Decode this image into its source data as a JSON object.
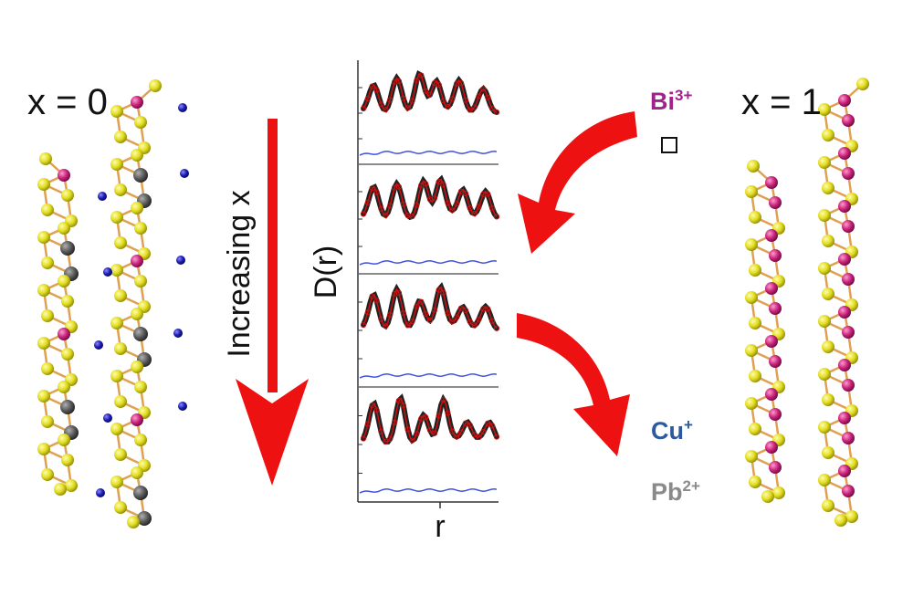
{
  "left_structure": {
    "label": "x = 0"
  },
  "right_structure": {
    "label": "x = 1"
  },
  "arrow": {
    "label": "Increasing x"
  },
  "plot": {
    "ylabel": "D(r)",
    "xlabel": "r",
    "panel_count": 4
  },
  "legend": {
    "bi": {
      "text": "Bi",
      "charge": "3+"
    },
    "cu": {
      "text": "Cu",
      "charge": "+"
    },
    "pb": {
      "text": "Pb",
      "charge": "2+"
    }
  },
  "colors": {
    "bi": "#c8237a",
    "bi_text": "#a0238c",
    "sulfur": "#e2dc1e",
    "pb": "#5a5a5a",
    "pb_text": "#8a8a8a",
    "cu": "#1c1cb4",
    "cu_text": "#2b5aa0",
    "bond": "#e0a050",
    "arrow": "#ee1111",
    "fit": "#cc1111",
    "diff": "#4455dd"
  }
}
